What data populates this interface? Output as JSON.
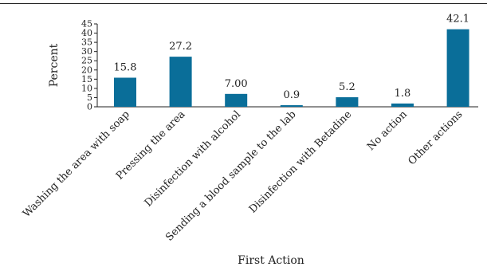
{
  "chart_data": {
    "type": "bar",
    "xlabel": "First Action",
    "ylabel": "Percent",
    "ylim": [
      0,
      45
    ],
    "yticks": [
      0,
      5,
      10,
      15,
      20,
      25,
      30,
      35,
      40,
      45
    ],
    "categories": [
      "Washing the area with soap",
      "Pressing the area",
      "Disinfection with alcohol",
      "Sending a blood sample to the lab",
      "Disinfection with Betadine",
      "No action",
      "Other actions"
    ],
    "values": [
      15.8,
      27.2,
      7.0,
      0.9,
      5.2,
      1.8,
      42.1
    ],
    "value_labels": [
      "15.8",
      "27.2",
      "7.00",
      "0.9",
      "5.2",
      "1.8",
      "42.1"
    ],
    "bar_color": "#0a6e99",
    "grid": false
  }
}
